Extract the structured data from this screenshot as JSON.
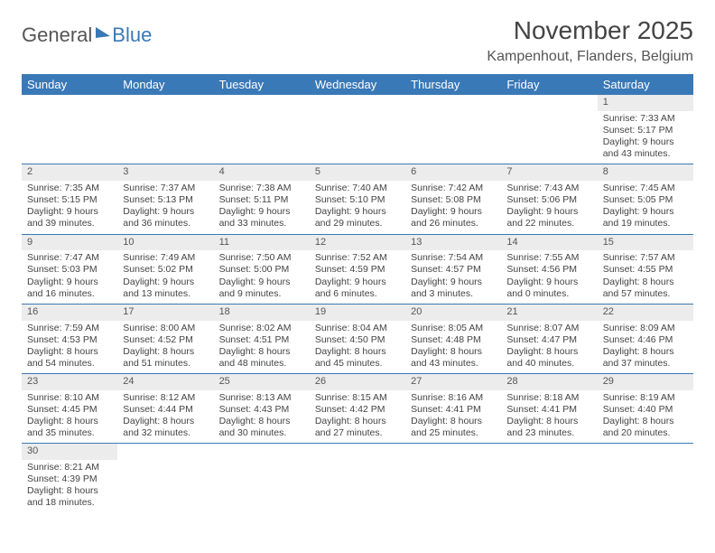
{
  "logo": {
    "part1": "General",
    "part2": "Blue"
  },
  "title": "November 2025",
  "location": "Kampenhout, Flanders, Belgium",
  "colors": {
    "header_bg": "#3a79b7",
    "daynum_bg": "#ececec",
    "border": "#3a79b7"
  },
  "dayNames": [
    "Sunday",
    "Monday",
    "Tuesday",
    "Wednesday",
    "Thursday",
    "Friday",
    "Saturday"
  ],
  "weeks": [
    [
      null,
      null,
      null,
      null,
      null,
      null,
      {
        "n": "1",
        "sr": "Sunrise: 7:33 AM",
        "ss": "Sunset: 5:17 PM",
        "d1": "Daylight: 9 hours",
        "d2": "and 43 minutes."
      }
    ],
    [
      {
        "n": "2",
        "sr": "Sunrise: 7:35 AM",
        "ss": "Sunset: 5:15 PM",
        "d1": "Daylight: 9 hours",
        "d2": "and 39 minutes."
      },
      {
        "n": "3",
        "sr": "Sunrise: 7:37 AM",
        "ss": "Sunset: 5:13 PM",
        "d1": "Daylight: 9 hours",
        "d2": "and 36 minutes."
      },
      {
        "n": "4",
        "sr": "Sunrise: 7:38 AM",
        "ss": "Sunset: 5:11 PM",
        "d1": "Daylight: 9 hours",
        "d2": "and 33 minutes."
      },
      {
        "n": "5",
        "sr": "Sunrise: 7:40 AM",
        "ss": "Sunset: 5:10 PM",
        "d1": "Daylight: 9 hours",
        "d2": "and 29 minutes."
      },
      {
        "n": "6",
        "sr": "Sunrise: 7:42 AM",
        "ss": "Sunset: 5:08 PM",
        "d1": "Daylight: 9 hours",
        "d2": "and 26 minutes."
      },
      {
        "n": "7",
        "sr": "Sunrise: 7:43 AM",
        "ss": "Sunset: 5:06 PM",
        "d1": "Daylight: 9 hours",
        "d2": "and 22 minutes."
      },
      {
        "n": "8",
        "sr": "Sunrise: 7:45 AM",
        "ss": "Sunset: 5:05 PM",
        "d1": "Daylight: 9 hours",
        "d2": "and 19 minutes."
      }
    ],
    [
      {
        "n": "9",
        "sr": "Sunrise: 7:47 AM",
        "ss": "Sunset: 5:03 PM",
        "d1": "Daylight: 9 hours",
        "d2": "and 16 minutes."
      },
      {
        "n": "10",
        "sr": "Sunrise: 7:49 AM",
        "ss": "Sunset: 5:02 PM",
        "d1": "Daylight: 9 hours",
        "d2": "and 13 minutes."
      },
      {
        "n": "11",
        "sr": "Sunrise: 7:50 AM",
        "ss": "Sunset: 5:00 PM",
        "d1": "Daylight: 9 hours",
        "d2": "and 9 minutes."
      },
      {
        "n": "12",
        "sr": "Sunrise: 7:52 AM",
        "ss": "Sunset: 4:59 PM",
        "d1": "Daylight: 9 hours",
        "d2": "and 6 minutes."
      },
      {
        "n": "13",
        "sr": "Sunrise: 7:54 AM",
        "ss": "Sunset: 4:57 PM",
        "d1": "Daylight: 9 hours",
        "d2": "and 3 minutes."
      },
      {
        "n": "14",
        "sr": "Sunrise: 7:55 AM",
        "ss": "Sunset: 4:56 PM",
        "d1": "Daylight: 9 hours",
        "d2": "and 0 minutes."
      },
      {
        "n": "15",
        "sr": "Sunrise: 7:57 AM",
        "ss": "Sunset: 4:55 PM",
        "d1": "Daylight: 8 hours",
        "d2": "and 57 minutes."
      }
    ],
    [
      {
        "n": "16",
        "sr": "Sunrise: 7:59 AM",
        "ss": "Sunset: 4:53 PM",
        "d1": "Daylight: 8 hours",
        "d2": "and 54 minutes."
      },
      {
        "n": "17",
        "sr": "Sunrise: 8:00 AM",
        "ss": "Sunset: 4:52 PM",
        "d1": "Daylight: 8 hours",
        "d2": "and 51 minutes."
      },
      {
        "n": "18",
        "sr": "Sunrise: 8:02 AM",
        "ss": "Sunset: 4:51 PM",
        "d1": "Daylight: 8 hours",
        "d2": "and 48 minutes."
      },
      {
        "n": "19",
        "sr": "Sunrise: 8:04 AM",
        "ss": "Sunset: 4:50 PM",
        "d1": "Daylight: 8 hours",
        "d2": "and 45 minutes."
      },
      {
        "n": "20",
        "sr": "Sunrise: 8:05 AM",
        "ss": "Sunset: 4:48 PM",
        "d1": "Daylight: 8 hours",
        "d2": "and 43 minutes."
      },
      {
        "n": "21",
        "sr": "Sunrise: 8:07 AM",
        "ss": "Sunset: 4:47 PM",
        "d1": "Daylight: 8 hours",
        "d2": "and 40 minutes."
      },
      {
        "n": "22",
        "sr": "Sunrise: 8:09 AM",
        "ss": "Sunset: 4:46 PM",
        "d1": "Daylight: 8 hours",
        "d2": "and 37 minutes."
      }
    ],
    [
      {
        "n": "23",
        "sr": "Sunrise: 8:10 AM",
        "ss": "Sunset: 4:45 PM",
        "d1": "Daylight: 8 hours",
        "d2": "and 35 minutes."
      },
      {
        "n": "24",
        "sr": "Sunrise: 8:12 AM",
        "ss": "Sunset: 4:44 PM",
        "d1": "Daylight: 8 hours",
        "d2": "and 32 minutes."
      },
      {
        "n": "25",
        "sr": "Sunrise: 8:13 AM",
        "ss": "Sunset: 4:43 PM",
        "d1": "Daylight: 8 hours",
        "d2": "and 30 minutes."
      },
      {
        "n": "26",
        "sr": "Sunrise: 8:15 AM",
        "ss": "Sunset: 4:42 PM",
        "d1": "Daylight: 8 hours",
        "d2": "and 27 minutes."
      },
      {
        "n": "27",
        "sr": "Sunrise: 8:16 AM",
        "ss": "Sunset: 4:41 PM",
        "d1": "Daylight: 8 hours",
        "d2": "and 25 minutes."
      },
      {
        "n": "28",
        "sr": "Sunrise: 8:18 AM",
        "ss": "Sunset: 4:41 PM",
        "d1": "Daylight: 8 hours",
        "d2": "and 23 minutes."
      },
      {
        "n": "29",
        "sr": "Sunrise: 8:19 AM",
        "ss": "Sunset: 4:40 PM",
        "d1": "Daylight: 8 hours",
        "d2": "and 20 minutes."
      }
    ],
    [
      {
        "n": "30",
        "sr": "Sunrise: 8:21 AM",
        "ss": "Sunset: 4:39 PM",
        "d1": "Daylight: 8 hours",
        "d2": "and 18 minutes."
      },
      null,
      null,
      null,
      null,
      null,
      null
    ]
  ]
}
